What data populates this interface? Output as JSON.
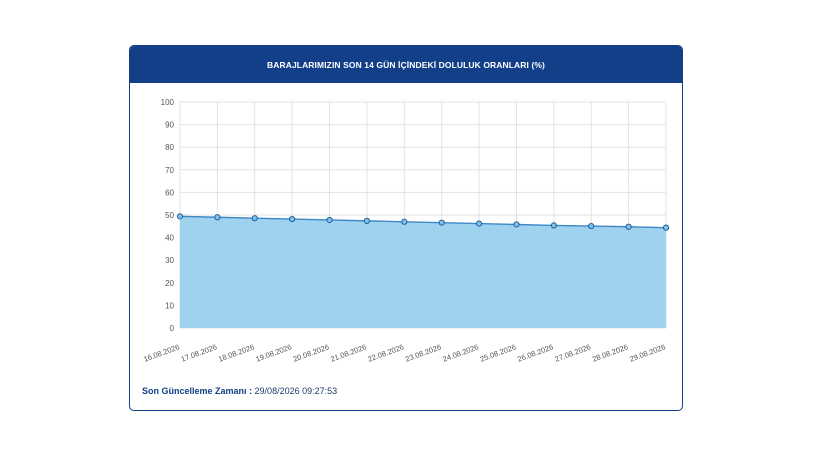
{
  "header": {
    "title": "BARAJLARIMIZIN SON 14 GÜN İÇİNDEKİ DOLULUK ORANLARI (%)"
  },
  "footer": {
    "label": "Son Güncelleme Zamanı :",
    "value": "29/08/2026 09:27:53"
  },
  "colors": {
    "header_bg": "#123f88",
    "area_fill": "#9ed2ef",
    "line": "#3f88c5",
    "point_fill": "#7fc3ea",
    "point_stroke": "#1f5fa0",
    "grid": "#e3e3e3"
  },
  "chart_data": {
    "type": "area",
    "title": "BARAJLARIMIZIN SON 14 GÜN İÇİNDEKİ DOLULUK ORANLARI (%)",
    "xlabel": "",
    "ylabel": "",
    "ylim": [
      0,
      100
    ],
    "yticks": [
      0,
      10,
      20,
      30,
      40,
      50,
      60,
      70,
      80,
      90,
      100
    ],
    "grid": true,
    "legend": "none",
    "categories": [
      "16.08.2026",
      "17.08.2026",
      "18.08.2026",
      "19.08.2026",
      "20.08.2026",
      "21.08.2026",
      "22.08.2026",
      "23.08.2026",
      "24.08.2026",
      "25.08.2026",
      "26.08.2026",
      "27.08.2026",
      "28.08.2026",
      "29.08.2026"
    ],
    "series": [
      {
        "values": [
          49.4,
          49.0,
          48.6,
          48.2,
          47.8,
          47.4,
          47.0,
          46.6,
          46.2,
          45.8,
          45.4,
          45.1,
          44.8,
          44.4
        ]
      }
    ]
  }
}
